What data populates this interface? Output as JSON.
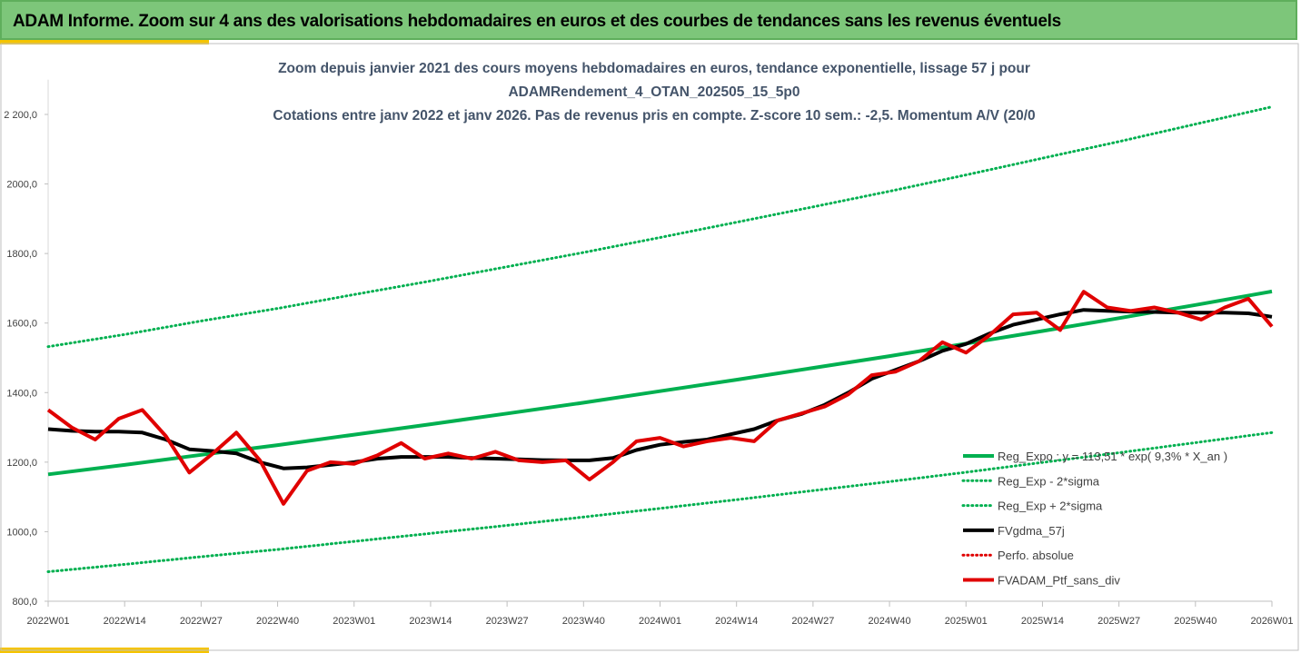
{
  "header": {
    "title": "ADAM Informe. Zoom sur 4 ans des valorisations hebdomadaires en euros et des courbes de tendances sans les revenus éventuels"
  },
  "chart_data": {
    "type": "line",
    "title": [
      "Zoom depuis janvier 2021 des cours moyens hebdomadaires  en euros, tendance exponentielle, lissage 57 j pour",
      "ADAMRendement_4_OTAN_202505_15_5p0",
      "Cotations entre janv 2022 et janv 2026. Pas de revenus pris en compte. Z-score 10 sem.: -2,5. Momentum A/V (20/0"
    ],
    "xlim": [
      0,
      208
    ],
    "ylim": [
      800,
      2300
    ],
    "xticks": [
      {
        "value": 0,
        "label": "2022W01"
      },
      {
        "value": 13,
        "label": "2022W14"
      },
      {
        "value": 26,
        "label": "2022W27"
      },
      {
        "value": 39,
        "label": "2022W40"
      },
      {
        "value": 52,
        "label": "2023W01"
      },
      {
        "value": 65,
        "label": "2023W14"
      },
      {
        "value": 78,
        "label": "2023W27"
      },
      {
        "value": 91,
        "label": "2023W40"
      },
      {
        "value": 104,
        "label": "2024W01"
      },
      {
        "value": 117,
        "label": "2024W14"
      },
      {
        "value": 130,
        "label": "2024W27"
      },
      {
        "value": 143,
        "label": "2024W40"
      },
      {
        "value": 156,
        "label": "2025W01"
      },
      {
        "value": 169,
        "label": "2025W14"
      },
      {
        "value": 182,
        "label": "2025W27"
      },
      {
        "value": 195,
        "label": "2025W40"
      },
      {
        "value": 208,
        "label": "2026W01"
      }
    ],
    "yticks": [
      {
        "value": 800,
        "label": "800,0"
      },
      {
        "value": 1000,
        "label": "1000,0"
      },
      {
        "value": 1200,
        "label": "1200,0"
      },
      {
        "value": 1400,
        "label": "1400,0"
      },
      {
        "value": 1600,
        "label": "1600,0"
      },
      {
        "value": 1800,
        "label": "1800,0"
      },
      {
        "value": 2000,
        "label": "2000,0"
      },
      {
        "value": 2200,
        "label": "2 200,0"
      }
    ],
    "series": [
      {
        "name": "Reg_Expo : y = 113,51 *  exp( 9,3% *  X_an )",
        "color": "#00b050",
        "style": "solid",
        "width": 4,
        "x": [
          0,
          13,
          26,
          39,
          52,
          65,
          78,
          91,
          104,
          117,
          130,
          143,
          156,
          169,
          182,
          195,
          208
        ],
        "values": [
          1165,
          1192,
          1221,
          1249,
          1279,
          1309,
          1340,
          1371,
          1404,
          1437,
          1471,
          1505,
          1541,
          1577,
          1614,
          1652,
          1691
        ]
      },
      {
        "name": "Reg_Exp - 2*sigma",
        "color": "#00b050",
        "style": "dotted",
        "width": 3,
        "x": [
          0,
          13,
          26,
          39,
          52,
          65,
          78,
          91,
          104,
          117,
          130,
          143,
          156,
          169,
          182,
          195,
          208
        ],
        "values": [
          885,
          906,
          928,
          949,
          972,
          995,
          1018,
          1042,
          1067,
          1092,
          1118,
          1144,
          1171,
          1199,
          1227,
          1256,
          1285
        ]
      },
      {
        "name": "Reg_Exp + 2*sigma",
        "color": "#00b050",
        "style": "dotted",
        "width": 3,
        "x": [
          0,
          13,
          26,
          39,
          52,
          65,
          78,
          91,
          104,
          117,
          130,
          143,
          156,
          169,
          182,
          195,
          208
        ],
        "values": [
          1532,
          1567,
          1606,
          1642,
          1682,
          1721,
          1762,
          1803,
          1846,
          1890,
          1934,
          1979,
          2026,
          2074,
          2122,
          2172,
          2222
        ]
      },
      {
        "name": "FVgdma_57j",
        "color": "#000000",
        "style": "solid",
        "width": 4,
        "x": [
          0,
          4,
          8,
          12,
          16,
          20,
          24,
          28,
          32,
          36,
          40,
          44,
          48,
          52,
          56,
          60,
          64,
          68,
          72,
          76,
          80,
          84,
          88,
          92,
          96,
          100,
          104,
          108,
          112,
          116,
          120,
          124,
          128,
          132,
          136,
          140,
          144,
          148,
          152,
          156,
          160,
          164,
          168,
          172,
          176,
          180,
          184,
          188,
          192,
          196,
          200,
          204,
          208
        ],
        "values": [
          1295,
          1290,
          1288,
          1288,
          1285,
          1265,
          1237,
          1232,
          1225,
          1200,
          1182,
          1185,
          1192,
          1200,
          1210,
          1215,
          1215,
          1215,
          1212,
          1210,
          1208,
          1206,
          1205,
          1205,
          1212,
          1235,
          1250,
          1258,
          1265,
          1280,
          1295,
          1320,
          1338,
          1365,
          1400,
          1440,
          1465,
          1490,
          1520,
          1540,
          1570,
          1595,
          1610,
          1625,
          1638,
          1635,
          1633,
          1632,
          1630,
          1630,
          1630,
          1628,
          1618
        ]
      },
      {
        "name": "Perfo. absolue",
        "color": "#e00000",
        "style": "dotted",
        "width": 3
      },
      {
        "name": "FVADAM_Ptf_sans_div",
        "color": "#e00000",
        "style": "solid",
        "width": 4,
        "x": [
          0,
          4,
          8,
          12,
          16,
          20,
          24,
          28,
          32,
          36,
          40,
          44,
          48,
          52,
          56,
          60,
          64,
          68,
          72,
          76,
          80,
          84,
          88,
          92,
          96,
          100,
          104,
          108,
          112,
          116,
          120,
          124,
          128,
          132,
          136,
          140,
          144,
          148,
          152,
          156,
          160,
          164,
          168,
          172,
          176,
          180,
          184,
          188,
          192,
          196,
          200,
          204,
          208
        ],
        "values": [
          1350,
          1300,
          1265,
          1325,
          1350,
          1275,
          1170,
          1225,
          1285,
          1205,
          1080,
          1175,
          1200,
          1195,
          1220,
          1255,
          1210,
          1225,
          1210,
          1230,
          1205,
          1200,
          1205,
          1150,
          1200,
          1260,
          1270,
          1245,
          1260,
          1270,
          1260,
          1320,
          1340,
          1360,
          1395,
          1450,
          1460,
          1490,
          1545,
          1515,
          1565,
          1625,
          1630,
          1580,
          1690,
          1645,
          1635,
          1645,
          1630,
          1610,
          1645,
          1670,
          1590
        ]
      }
    ]
  }
}
